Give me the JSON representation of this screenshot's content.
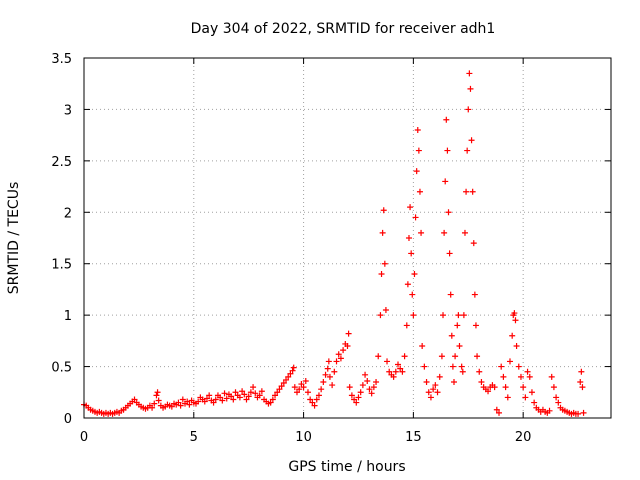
{
  "chart_data": {
    "type": "scatter",
    "title": "Day 304 of 2022, SRMTID for receiver adh1",
    "xlabel": "GPS time / hours",
    "ylabel": "SRMTID / TECUs",
    "xlim": [
      0,
      24
    ],
    "ylim": [
      0,
      3.5
    ],
    "xticks": [
      0,
      5,
      10,
      15,
      20
    ],
    "xtick_labels": [
      "0",
      "5",
      "10",
      "15",
      "20"
    ],
    "yticks": [
      0,
      0.5,
      1,
      1.5,
      2,
      2.5,
      3,
      3.5
    ],
    "ytick_labels": [
      "0",
      "0.5",
      "1",
      "1.5",
      "2",
      "2.5",
      "3",
      "3.5"
    ],
    "grid": true,
    "marker": "+",
    "series": [
      {
        "name": "adh1",
        "color": "#ff0000",
        "points": [
          [
            0.0,
            0.13
          ],
          [
            0.1,
            0.12
          ],
          [
            0.2,
            0.1
          ],
          [
            0.3,
            0.08
          ],
          [
            0.4,
            0.07
          ],
          [
            0.5,
            0.06
          ],
          [
            0.6,
            0.05
          ],
          [
            0.7,
            0.06
          ],
          [
            0.8,
            0.05
          ],
          [
            0.9,
            0.04
          ],
          [
            1.0,
            0.05
          ],
          [
            1.1,
            0.04
          ],
          [
            1.2,
            0.05
          ],
          [
            1.3,
            0.04
          ],
          [
            1.4,
            0.05
          ],
          [
            1.5,
            0.06
          ],
          [
            1.6,
            0.05
          ],
          [
            1.7,
            0.07
          ],
          [
            1.8,
            0.08
          ],
          [
            1.9,
            0.1
          ],
          [
            2.0,
            0.12
          ],
          [
            2.1,
            0.14
          ],
          [
            2.2,
            0.16
          ],
          [
            2.3,
            0.18
          ],
          [
            2.4,
            0.15
          ],
          [
            2.5,
            0.13
          ],
          [
            2.6,
            0.11
          ],
          [
            2.7,
            0.1
          ],
          [
            2.8,
            0.09
          ],
          [
            2.9,
            0.1
          ],
          [
            3.0,
            0.12
          ],
          [
            3.1,
            0.1
          ],
          [
            3.2,
            0.14
          ],
          [
            3.3,
            0.22
          ],
          [
            3.35,
            0.25
          ],
          [
            3.4,
            0.17
          ],
          [
            3.5,
            0.12
          ],
          [
            3.6,
            0.1
          ],
          [
            3.7,
            0.11
          ],
          [
            3.8,
            0.13
          ],
          [
            3.9,
            0.12
          ],
          [
            4.0,
            0.11
          ],
          [
            4.1,
            0.14
          ],
          [
            4.2,
            0.13
          ],
          [
            4.3,
            0.15
          ],
          [
            4.4,
            0.12
          ],
          [
            4.5,
            0.18
          ],
          [
            4.6,
            0.14
          ],
          [
            4.7,
            0.16
          ],
          [
            4.8,
            0.13
          ],
          [
            4.9,
            0.17
          ],
          [
            5.0,
            0.15
          ],
          [
            5.1,
            0.14
          ],
          [
            5.2,
            0.16
          ],
          [
            5.3,
            0.2
          ],
          [
            5.4,
            0.18
          ],
          [
            5.5,
            0.16
          ],
          [
            5.6,
            0.19
          ],
          [
            5.7,
            0.22
          ],
          [
            5.8,
            0.17
          ],
          [
            5.9,
            0.15
          ],
          [
            6.0,
            0.18
          ],
          [
            6.1,
            0.22
          ],
          [
            6.2,
            0.2
          ],
          [
            6.3,
            0.17
          ],
          [
            6.4,
            0.24
          ],
          [
            6.5,
            0.19
          ],
          [
            6.6,
            0.23
          ],
          [
            6.7,
            0.21
          ],
          [
            6.8,
            0.18
          ],
          [
            6.9,
            0.25
          ],
          [
            7.0,
            0.22
          ],
          [
            7.1,
            0.2
          ],
          [
            7.2,
            0.26
          ],
          [
            7.3,
            0.23
          ],
          [
            7.4,
            0.18
          ],
          [
            7.5,
            0.21
          ],
          [
            7.6,
            0.25
          ],
          [
            7.7,
            0.3
          ],
          [
            7.8,
            0.24
          ],
          [
            7.9,
            0.2
          ],
          [
            8.0,
            0.22
          ],
          [
            8.1,
            0.26
          ],
          [
            8.2,
            0.18
          ],
          [
            8.3,
            0.16
          ],
          [
            8.4,
            0.14
          ],
          [
            8.5,
            0.15
          ],
          [
            8.6,
            0.18
          ],
          [
            8.7,
            0.22
          ],
          [
            8.8,
            0.25
          ],
          [
            8.9,
            0.28
          ],
          [
            9.0,
            0.31
          ],
          [
            9.1,
            0.34
          ],
          [
            9.2,
            0.37
          ],
          [
            9.3,
            0.4
          ],
          [
            9.4,
            0.43
          ],
          [
            9.5,
            0.46
          ],
          [
            9.55,
            0.49
          ],
          [
            9.6,
            0.3
          ],
          [
            9.7,
            0.25
          ],
          [
            9.8,
            0.28
          ],
          [
            9.9,
            0.33
          ],
          [
            10.0,
            0.3
          ],
          [
            10.1,
            0.36
          ],
          [
            10.2,
            0.25
          ],
          [
            10.3,
            0.18
          ],
          [
            10.4,
            0.15
          ],
          [
            10.5,
            0.12
          ],
          [
            10.6,
            0.18
          ],
          [
            10.7,
            0.22
          ],
          [
            10.8,
            0.28
          ],
          [
            10.9,
            0.35
          ],
          [
            11.0,
            0.42
          ],
          [
            11.1,
            0.48
          ],
          [
            11.15,
            0.55
          ],
          [
            11.2,
            0.4
          ],
          [
            11.3,
            0.32
          ],
          [
            11.4,
            0.45
          ],
          [
            11.5,
            0.55
          ],
          [
            11.6,
            0.62
          ],
          [
            11.7,
            0.58
          ],
          [
            11.8,
            0.66
          ],
          [
            11.9,
            0.72
          ],
          [
            12.0,
            0.7
          ],
          [
            12.05,
            0.82
          ],
          [
            12.1,
            0.3
          ],
          [
            12.2,
            0.22
          ],
          [
            12.3,
            0.18
          ],
          [
            12.4,
            0.15
          ],
          [
            12.5,
            0.2
          ],
          [
            12.6,
            0.25
          ],
          [
            12.7,
            0.32
          ],
          [
            12.8,
            0.42
          ],
          [
            12.9,
            0.36
          ],
          [
            13.0,
            0.28
          ],
          [
            13.1,
            0.24
          ],
          [
            13.2,
            0.3
          ],
          [
            13.3,
            0.35
          ],
          [
            13.4,
            0.6
          ],
          [
            13.5,
            1.0
          ],
          [
            13.55,
            1.4
          ],
          [
            13.6,
            1.8
          ],
          [
            13.65,
            2.02
          ],
          [
            13.7,
            1.5
          ],
          [
            13.75,
            1.05
          ],
          [
            13.8,
            0.55
          ],
          [
            13.9,
            0.45
          ],
          [
            14.0,
            0.42
          ],
          [
            14.1,
            0.4
          ],
          [
            14.2,
            0.45
          ],
          [
            14.3,
            0.52
          ],
          [
            14.4,
            0.48
          ],
          [
            14.5,
            0.45
          ],
          [
            14.6,
            0.6
          ],
          [
            14.7,
            0.9
          ],
          [
            14.75,
            1.3
          ],
          [
            14.8,
            1.75
          ],
          [
            14.85,
            2.05
          ],
          [
            14.9,
            1.6
          ],
          [
            14.95,
            1.2
          ],
          [
            15.0,
            1.0
          ],
          [
            15.05,
            1.4
          ],
          [
            15.1,
            1.95
          ],
          [
            15.15,
            2.4
          ],
          [
            15.2,
            2.8
          ],
          [
            15.25,
            2.6
          ],
          [
            15.3,
            2.2
          ],
          [
            15.35,
            1.8
          ],
          [
            15.4,
            0.7
          ],
          [
            15.5,
            0.5
          ],
          [
            15.6,
            0.35
          ],
          [
            15.7,
            0.25
          ],
          [
            15.8,
            0.2
          ],
          [
            15.9,
            0.28
          ],
          [
            16.0,
            0.32
          ],
          [
            16.1,
            0.25
          ],
          [
            16.2,
            0.4
          ],
          [
            16.3,
            0.6
          ],
          [
            16.35,
            1.0
          ],
          [
            16.4,
            1.8
          ],
          [
            16.45,
            2.3
          ],
          [
            16.5,
            2.9
          ],
          [
            16.55,
            2.6
          ],
          [
            16.6,
            2.0
          ],
          [
            16.65,
            1.6
          ],
          [
            16.7,
            1.2
          ],
          [
            16.75,
            0.8
          ],
          [
            16.8,
            0.5
          ],
          [
            16.85,
            0.35
          ],
          [
            16.9,
            0.6
          ],
          [
            17.0,
            0.9
          ],
          [
            17.05,
            1.0
          ],
          [
            17.1,
            0.7
          ],
          [
            17.2,
            0.5
          ],
          [
            17.25,
            0.45
          ],
          [
            17.3,
            1.0
          ],
          [
            17.35,
            1.8
          ],
          [
            17.4,
            2.2
          ],
          [
            17.45,
            2.6
          ],
          [
            17.5,
            3.0
          ],
          [
            17.55,
            3.35
          ],
          [
            17.6,
            3.2
          ],
          [
            17.65,
            2.7
          ],
          [
            17.7,
            2.2
          ],
          [
            17.75,
            1.7
          ],
          [
            17.8,
            1.2
          ],
          [
            17.85,
            0.9
          ],
          [
            17.9,
            0.6
          ],
          [
            18.0,
            0.45
          ],
          [
            18.1,
            0.35
          ],
          [
            18.2,
            0.3
          ],
          [
            18.3,
            0.28
          ],
          [
            18.4,
            0.26
          ],
          [
            18.5,
            0.3
          ],
          [
            18.6,
            0.32
          ],
          [
            18.7,
            0.3
          ],
          [
            18.8,
            0.08
          ],
          [
            18.9,
            0.05
          ],
          [
            19.0,
            0.5
          ],
          [
            19.1,
            0.4
          ],
          [
            19.2,
            0.3
          ],
          [
            19.3,
            0.2
          ],
          [
            19.4,
            0.55
          ],
          [
            19.5,
            0.8
          ],
          [
            19.55,
            1.0
          ],
          [
            19.6,
            1.02
          ],
          [
            19.65,
            0.95
          ],
          [
            19.7,
            0.7
          ],
          [
            19.8,
            0.5
          ],
          [
            19.9,
            0.4
          ],
          [
            20.0,
            0.3
          ],
          [
            20.1,
            0.2
          ],
          [
            20.2,
            0.45
          ],
          [
            20.3,
            0.4
          ],
          [
            20.4,
            0.25
          ],
          [
            20.5,
            0.15
          ],
          [
            20.6,
            0.1
          ],
          [
            20.7,
            0.08
          ],
          [
            20.8,
            0.06
          ],
          [
            20.9,
            0.08
          ],
          [
            21.0,
            0.06
          ],
          [
            21.1,
            0.05
          ],
          [
            21.2,
            0.07
          ],
          [
            21.3,
            0.4
          ],
          [
            21.4,
            0.3
          ],
          [
            21.5,
            0.2
          ],
          [
            21.6,
            0.15
          ],
          [
            21.7,
            0.1
          ],
          [
            21.8,
            0.08
          ],
          [
            21.9,
            0.07
          ],
          [
            22.0,
            0.06
          ],
          [
            22.1,
            0.05
          ],
          [
            22.2,
            0.04
          ],
          [
            22.3,
            0.05
          ],
          [
            22.4,
            0.04
          ],
          [
            22.5,
            0.04
          ],
          [
            22.6,
            0.35
          ],
          [
            22.65,
            0.45
          ],
          [
            22.7,
            0.3
          ],
          [
            22.75,
            0.05
          ]
        ]
      }
    ]
  }
}
